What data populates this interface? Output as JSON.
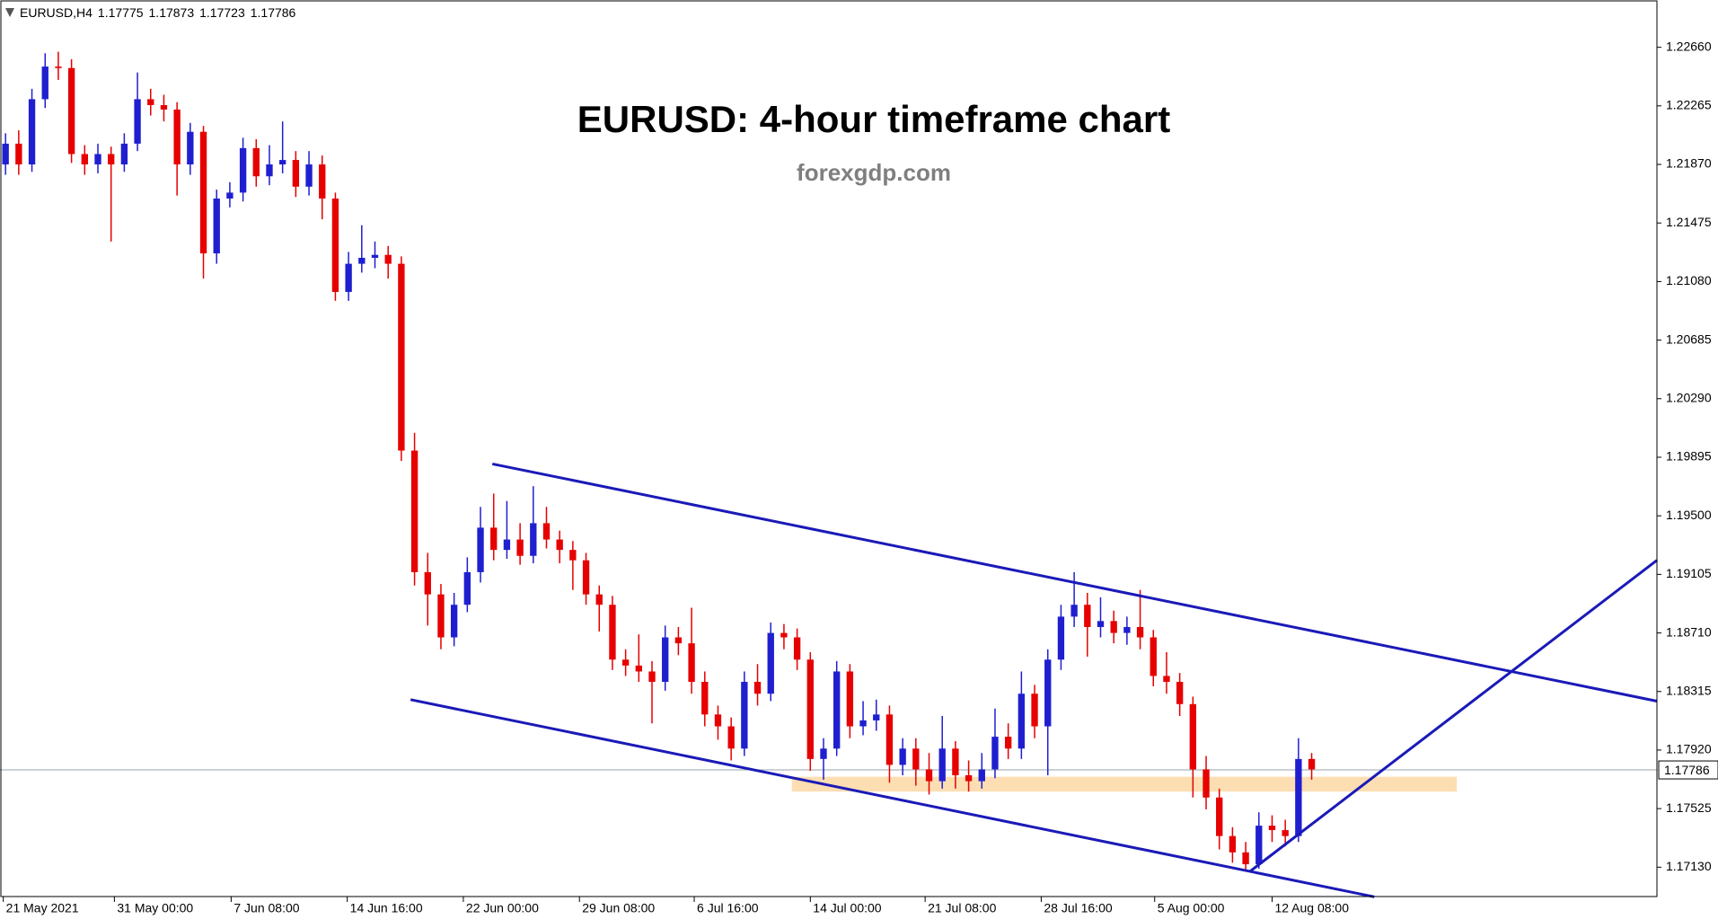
{
  "chart_data": {
    "type": "candlestick",
    "symbol": "EURUSD,H4",
    "quote": [
      1.17775,
      1.17873,
      1.17723,
      1.17786
    ],
    "title": "EURUSD: 4-hour timeframe chart",
    "subtitle": "forexgdp.com",
    "up_color": "#1f1fd0",
    "down_color": "#e60000",
    "candles": [
      [
        1.2187,
        1.2208,
        1.218,
        1.2201
      ],
      [
        1.2201,
        1.221,
        1.218,
        1.2187
      ],
      [
        1.2187,
        1.2238,
        1.2182,
        1.2231
      ],
      [
        1.2231,
        1.2262,
        1.2225,
        1.2253
      ],
      [
        1.2253,
        1.2263,
        1.2244,
        1.2252
      ],
      [
        1.2252,
        1.2258,
        1.2188,
        1.2194
      ],
      [
        1.2194,
        1.22,
        1.218,
        1.2187
      ],
      [
        1.2187,
        1.2201,
        1.2181,
        1.2194
      ],
      [
        1.2194,
        1.2199,
        1.2135,
        1.2187
      ],
      [
        1.2187,
        1.2208,
        1.2182,
        1.2201
      ],
      [
        1.2201,
        1.2249,
        1.2196,
        1.2231
      ],
      [
        1.2231,
        1.2238,
        1.222,
        1.2227
      ],
      [
        1.2227,
        1.2234,
        1.2216,
        1.2224
      ],
      [
        1.2224,
        1.2229,
        1.2166,
        1.2187
      ],
      [
        1.2187,
        1.2215,
        1.218,
        1.2209
      ],
      [
        1.2209,
        1.2213,
        1.211,
        1.2127
      ],
      [
        1.2127,
        1.217,
        1.212,
        1.2164
      ],
      [
        1.2164,
        1.2175,
        1.2158,
        1.2168
      ],
      [
        1.2168,
        1.2205,
        1.2162,
        1.2198
      ],
      [
        1.2198,
        1.2204,
        1.2172,
        1.2179
      ],
      [
        1.2179,
        1.22,
        1.2173,
        1.2187
      ],
      [
        1.2187,
        1.2216,
        1.2181,
        1.219
      ],
      [
        1.219,
        1.2196,
        1.2165,
        1.2172
      ],
      [
        1.2172,
        1.2196,
        1.2166,
        1.2187
      ],
      [
        1.2187,
        1.2193,
        1.215,
        1.2164
      ],
      [
        1.2164,
        1.2168,
        1.2095,
        1.2101
      ],
      [
        1.2101,
        1.2128,
        1.2095,
        1.212
      ],
      [
        1.212,
        1.2146,
        1.2114,
        1.2124
      ],
      [
        1.2124,
        1.2135,
        1.2117,
        1.2126
      ],
      [
        1.2126,
        1.2132,
        1.211,
        1.212
      ],
      [
        1.212,
        1.2125,
        1.1987,
        1.1994
      ],
      [
        1.1994,
        1.2006,
        1.1903,
        1.1912
      ],
      [
        1.1912,
        1.1925,
        1.1876,
        1.1897
      ],
      [
        1.1897,
        1.1904,
        1.186,
        1.1868
      ],
      [
        1.1868,
        1.1898,
        1.1862,
        1.189
      ],
      [
        1.189,
        1.1922,
        1.1885,
        1.1912
      ],
      [
        1.1912,
        1.1956,
        1.1905,
        1.1942
      ],
      [
        1.1942,
        1.1965,
        1.192,
        1.1927
      ],
      [
        1.1927,
        1.196,
        1.1921,
        1.1934
      ],
      [
        1.1934,
        1.1945,
        1.1917,
        1.1923
      ],
      [
        1.1923,
        1.197,
        1.1918,
        1.1945
      ],
      [
        1.1945,
        1.1956,
        1.1928,
        1.1934
      ],
      [
        1.1934,
        1.194,
        1.1918,
        1.1927
      ],
      [
        1.1927,
        1.1933,
        1.19,
        1.192
      ],
      [
        1.192,
        1.1925,
        1.189,
        1.1897
      ],
      [
        1.1897,
        1.1903,
        1.1872,
        1.189
      ],
      [
        1.189,
        1.1896,
        1.1846,
        1.1853
      ],
      [
        1.1853,
        1.186,
        1.1842,
        1.1849
      ],
      [
        1.1849,
        1.187,
        1.1838,
        1.1845
      ],
      [
        1.1845,
        1.1852,
        1.181,
        1.1838
      ],
      [
        1.1838,
        1.1876,
        1.1832,
        1.1868
      ],
      [
        1.1868,
        1.1875,
        1.1856,
        1.1864
      ],
      [
        1.1864,
        1.1888,
        1.183,
        1.1838
      ],
      [
        1.1838,
        1.1845,
        1.1808,
        1.1816
      ],
      [
        1.1816,
        1.1822,
        1.1799,
        1.1808
      ],
      [
        1.1808,
        1.1814,
        1.1785,
        1.1793
      ],
      [
        1.1793,
        1.1845,
        1.1788,
        1.1838
      ],
      [
        1.1838,
        1.185,
        1.1822,
        1.183
      ],
      [
        1.183,
        1.1878,
        1.1825,
        1.1871
      ],
      [
        1.1871,
        1.1877,
        1.186,
        1.1868
      ],
      [
        1.1868,
        1.1874,
        1.1846,
        1.1853
      ],
      [
        1.1853,
        1.1858,
        1.1778,
        1.1786
      ],
      [
        1.1786,
        1.18,
        1.1772,
        1.1793
      ],
      [
        1.1793,
        1.1852,
        1.1788,
        1.1845
      ],
      [
        1.1845,
        1.185,
        1.18,
        1.1808
      ],
      [
        1.1808,
        1.1825,
        1.1802,
        1.1812
      ],
      [
        1.1812,
        1.1826,
        1.1805,
        1.1816
      ],
      [
        1.1816,
        1.1822,
        1.177,
        1.1782
      ],
      [
        1.1782,
        1.18,
        1.1775,
        1.1793
      ],
      [
        1.1793,
        1.18,
        1.1768,
        1.1779
      ],
      [
        1.1779,
        1.179,
        1.1762,
        1.1771
      ],
      [
        1.1771,
        1.1815,
        1.1766,
        1.1793
      ],
      [
        1.1793,
        1.1798,
        1.1766,
        1.1775
      ],
      [
        1.1775,
        1.1785,
        1.1764,
        1.1771
      ],
      [
        1.1771,
        1.179,
        1.1766,
        1.1779
      ],
      [
        1.1779,
        1.182,
        1.1773,
        1.1801
      ],
      [
        1.1801,
        1.181,
        1.1786,
        1.1793
      ],
      [
        1.1793,
        1.1845,
        1.1786,
        1.183
      ],
      [
        1.183,
        1.1836,
        1.18,
        1.1808
      ],
      [
        1.1808,
        1.186,
        1.1775,
        1.1853
      ],
      [
        1.1853,
        1.189,
        1.1846,
        1.1882
      ],
      [
        1.1882,
        1.1912,
        1.1875,
        1.189
      ],
      [
        1.189,
        1.1898,
        1.1855,
        1.1875
      ],
      [
        1.1875,
        1.1895,
        1.1868,
        1.1879
      ],
      [
        1.1879,
        1.1886,
        1.1864,
        1.1871
      ],
      [
        1.1871,
        1.1882,
        1.1863,
        1.1875
      ],
      [
        1.1875,
        1.19,
        1.186,
        1.1868
      ],
      [
        1.1868,
        1.1873,
        1.1835,
        1.1842
      ],
      [
        1.1842,
        1.1858,
        1.183,
        1.1838
      ],
      [
        1.1838,
        1.1844,
        1.1815,
        1.1823
      ],
      [
        1.1823,
        1.1828,
        1.176,
        1.1779
      ],
      [
        1.1779,
        1.1788,
        1.1752,
        1.176
      ],
      [
        1.176,
        1.1766,
        1.1725,
        1.1734
      ],
      [
        1.1734,
        1.174,
        1.1716,
        1.1723
      ],
      [
        1.1723,
        1.173,
        1.171,
        1.1715
      ],
      [
        1.1715,
        1.175,
        1.1712,
        1.1741
      ],
      [
        1.1741,
        1.1748,
        1.173,
        1.1738
      ],
      [
        1.1738,
        1.1745,
        1.1727,
        1.1734
      ],
      [
        1.1734,
        1.18,
        1.173,
        1.1786
      ],
      [
        1.1786,
        1.179,
        1.1772,
        1.1779
      ]
    ],
    "xlim": [
      -0.42,
      125.17
    ],
    "xticks": [
      {
        "value": -0.17,
        "label": "21 May 2021"
      },
      {
        "value": 8.25,
        "label": "31 May 00:00"
      },
      {
        "value": 17.1,
        "label": "7 Jun 08:00"
      },
      {
        "value": 25.9,
        "label": "14 Jun 16:00"
      },
      {
        "value": 34.7,
        "label": "22 Jun 00:00"
      },
      {
        "value": 43.5,
        "label": "29 Jun 08:00"
      },
      {
        "value": 52.2,
        "label": "6 Jul 16:00"
      },
      {
        "value": 61,
        "label": "14 Jul 00:00"
      },
      {
        "value": 69.7,
        "label": "21 Jul 08:00"
      },
      {
        "value": 78.5,
        "label": "28 Jul 16:00"
      },
      {
        "value": 87.1,
        "label": "5 Aug 00:00"
      },
      {
        "value": 96,
        "label": "12 Aug 08:00"
      }
    ],
    "ylim": [
      1.16932,
      1.22979
    ],
    "yticks": [
      {
        "value": 1.2266,
        "label": "1.22660"
      },
      1.22265,
      {
        "value": 1.2187,
        "label": "1.21870"
      },
      1.21475,
      {
        "value": 1.2108,
        "label": "1.21080"
      },
      1.20685,
      {
        "value": 1.2029,
        "label": "1.20290"
      },
      1.19895,
      {
        "value": 1.195,
        "label": "1.19500"
      },
      1.19105,
      {
        "value": 1.1871,
        "label": "1.18710"
      },
      1.18315,
      {
        "value": 1.1792,
        "label": "1.17920"
      },
      1.17525,
      {
        "value": 1.1713,
        "label": "1.17130"
      }
    ],
    "trendline_color": "#1a1ab8",
    "trendlines": [
      {
        "x": [
          36.9,
          125.17
        ],
        "y": [
          1.1985,
          1.1825
        ]
      },
      {
        "x": [
          30.7,
          103.75
        ],
        "y": [
          1.1826,
          1.1693
        ]
      },
      {
        "x": [
          94.3,
          125.17
        ],
        "y": [
          1.171,
          1.192
        ]
      }
    ],
    "zone": {
      "x": [
        59.6,
        110
      ],
      "y": [
        1.1764,
        1.1774
      ],
      "color": "#fcd8a4"
    }
  }
}
